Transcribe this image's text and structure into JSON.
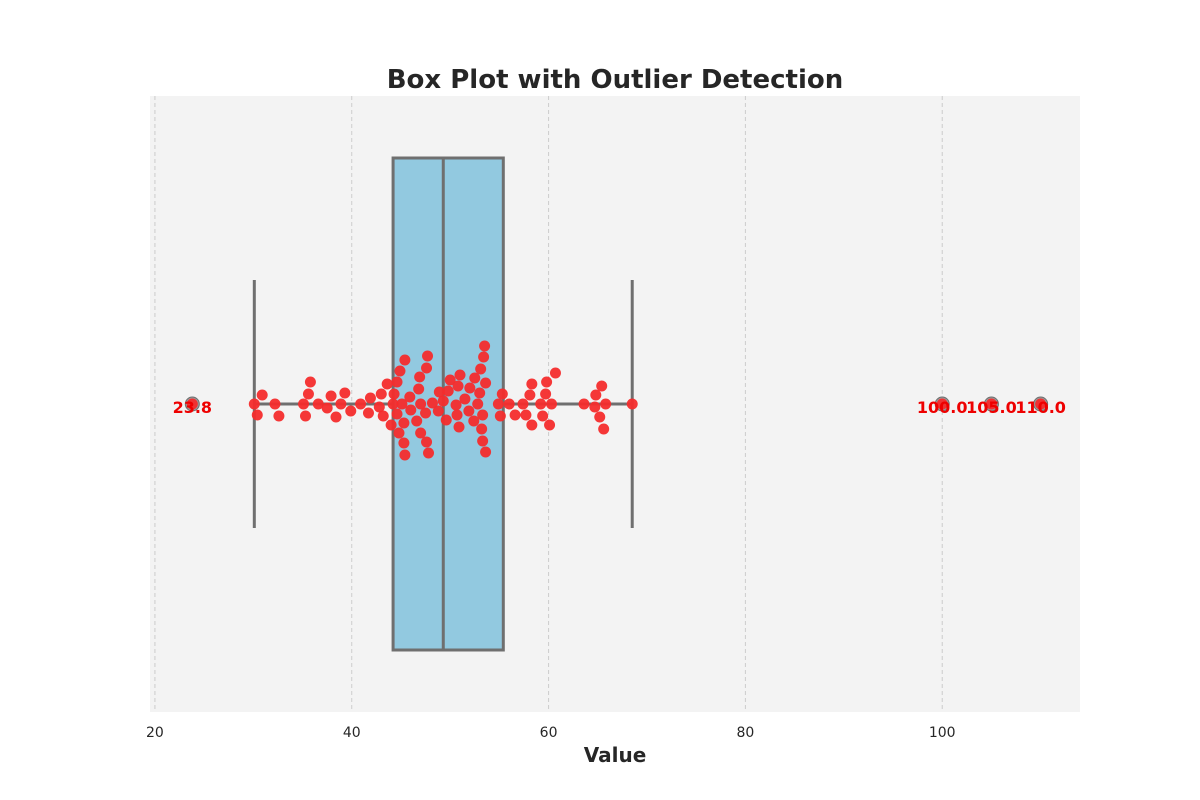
{
  "chart_data": {
    "type": "box",
    "title": "Box Plot with Outlier Detection",
    "xlabel": "Value",
    "ylabel": "",
    "xlim": [
      19.5,
      114
    ],
    "xticks": [
      20,
      40,
      60,
      80,
      100
    ],
    "grid": "vertical dashed",
    "orientation": "horizontal",
    "box": {
      "whisker_low": 30.1,
      "q1": 44.2,
      "median": 49.3,
      "q3": 55.4,
      "whisker_high": 68.5
    },
    "outliers": [
      23.8,
      100.0,
      105.0,
      110.0
    ],
    "outlier_labels": [
      "23.8",
      "100.0",
      "105.0",
      "110.0"
    ],
    "points": [
      {
        "x": 30.1,
        "j": 0
      },
      {
        "x": 30.4,
        "j": -0.11
      },
      {
        "x": 30.9,
        "j": 0.09
      },
      {
        "x": 32.2,
        "j": 0
      },
      {
        "x": 32.6,
        "j": -0.12
      },
      {
        "x": 35.1,
        "j": 0
      },
      {
        "x": 35.3,
        "j": -0.12
      },
      {
        "x": 35.6,
        "j": 0.1
      },
      {
        "x": 35.8,
        "j": 0.22
      },
      {
        "x": 36.6,
        "j": 0
      },
      {
        "x": 37.5,
        "j": -0.04
      },
      {
        "x": 37.9,
        "j": 0.08
      },
      {
        "x": 38.4,
        "j": -0.13
      },
      {
        "x": 38.9,
        "j": 0
      },
      {
        "x": 39.3,
        "j": 0.11
      },
      {
        "x": 39.9,
        "j": -0.07
      },
      {
        "x": 40.9,
        "j": 0
      },
      {
        "x": 41.7,
        "j": -0.09
      },
      {
        "x": 41.9,
        "j": 0.06
      },
      {
        "x": 42.8,
        "j": -0.03
      },
      {
        "x": 43.0,
        "j": 0.1
      },
      {
        "x": 43.2,
        "j": -0.12
      },
      {
        "x": 43.6,
        "j": 0.2
      },
      {
        "x": 44.0,
        "j": -0.21
      },
      {
        "x": 44.2,
        "j": 0
      },
      {
        "x": 44.3,
        "j": 0.1
      },
      {
        "x": 44.6,
        "j": -0.1
      },
      {
        "x": 44.6,
        "j": 0.22
      },
      {
        "x": 44.8,
        "j": -0.29
      },
      {
        "x": 44.9,
        "j": 0.33
      },
      {
        "x": 45.1,
        "j": 0
      },
      {
        "x": 45.3,
        "j": -0.19
      },
      {
        "x": 45.3,
        "j": -0.39
      },
      {
        "x": 45.4,
        "j": -0.51
      },
      {
        "x": 45.4,
        "j": 0.44
      },
      {
        "x": 45.9,
        "j": 0.07
      },
      {
        "x": 46.0,
        "j": -0.06
      },
      {
        "x": 46.6,
        "j": -0.17
      },
      {
        "x": 46.8,
        "j": 0.15
      },
      {
        "x": 46.9,
        "j": 0.27
      },
      {
        "x": 47.0,
        "j": 0
      },
      {
        "x": 47.0,
        "j": -0.29
      },
      {
        "x": 47.5,
        "j": -0.09
      },
      {
        "x": 47.6,
        "j": 0.36
      },
      {
        "x": 47.6,
        "j": -0.38
      },
      {
        "x": 47.7,
        "j": 0.48
      },
      {
        "x": 47.8,
        "j": -0.49
      },
      {
        "x": 48.2,
        "j": 0.01
      },
      {
        "x": 48.8,
        "j": -0.07
      },
      {
        "x": 48.9,
        "j": 0.12
      },
      {
        "x": 49.3,
        "j": 0.03
      },
      {
        "x": 49.6,
        "j": -0.16
      },
      {
        "x": 49.8,
        "j": 0.13
      },
      {
        "x": 50.0,
        "j": 0.24
      },
      {
        "x": 50.6,
        "j": -0.01
      },
      {
        "x": 50.7,
        "j": -0.11
      },
      {
        "x": 50.8,
        "j": 0.18
      },
      {
        "x": 50.9,
        "j": -0.23
      },
      {
        "x": 51.0,
        "j": 0.29
      },
      {
        "x": 51.5,
        "j": 0.05
      },
      {
        "x": 51.9,
        "j": -0.07
      },
      {
        "x": 52.0,
        "j": 0.16
      },
      {
        "x": 52.4,
        "j": -0.17
      },
      {
        "x": 52.5,
        "j": 0.26
      },
      {
        "x": 52.8,
        "j": 0
      },
      {
        "x": 53.0,
        "j": 0.11
      },
      {
        "x": 53.1,
        "j": 0.35
      },
      {
        "x": 53.2,
        "j": -0.25
      },
      {
        "x": 53.3,
        "j": -0.11
      },
      {
        "x": 53.3,
        "j": -0.37
      },
      {
        "x": 53.4,
        "j": 0.47
      },
      {
        "x": 53.5,
        "j": 0.58
      },
      {
        "x": 53.6,
        "j": 0.21
      },
      {
        "x": 53.6,
        "j": -0.48
      },
      {
        "x": 54.9,
        "j": 0
      },
      {
        "x": 55.1,
        "j": -0.12
      },
      {
        "x": 55.3,
        "j": 0.1
      },
      {
        "x": 56.0,
        "j": 0
      },
      {
        "x": 56.6,
        "j": -0.11
      },
      {
        "x": 57.4,
        "j": 0
      },
      {
        "x": 57.7,
        "j": -0.11
      },
      {
        "x": 58.1,
        "j": 0.09
      },
      {
        "x": 58.3,
        "j": 0.2
      },
      {
        "x": 58.3,
        "j": -0.21
      },
      {
        "x": 59.2,
        "j": 0
      },
      {
        "x": 59.4,
        "j": -0.12
      },
      {
        "x": 59.7,
        "j": 0.1
      },
      {
        "x": 59.8,
        "j": 0.22
      },
      {
        "x": 60.1,
        "j": -0.21
      },
      {
        "x": 60.3,
        "j": 0
      },
      {
        "x": 60.7,
        "j": 0.31
      },
      {
        "x": 63.6,
        "j": 0
      },
      {
        "x": 64.7,
        "j": -0.03
      },
      {
        "x": 64.8,
        "j": 0.09
      },
      {
        "x": 65.2,
        "j": -0.13
      },
      {
        "x": 65.4,
        "j": 0.18
      },
      {
        "x": 65.6,
        "j": -0.25
      },
      {
        "x": 65.8,
        "j": 0
      },
      {
        "x": 68.5,
        "j": 0
      }
    ],
    "colors": {
      "plot_bg": "#f3f3f3",
      "box_fill": "#92c9e0",
      "box_edge": "#6f6f6f",
      "grid": "#cccccc",
      "points": "#f42c2c",
      "outlier_text": "#ee0000",
      "text": "#262626"
    }
  }
}
